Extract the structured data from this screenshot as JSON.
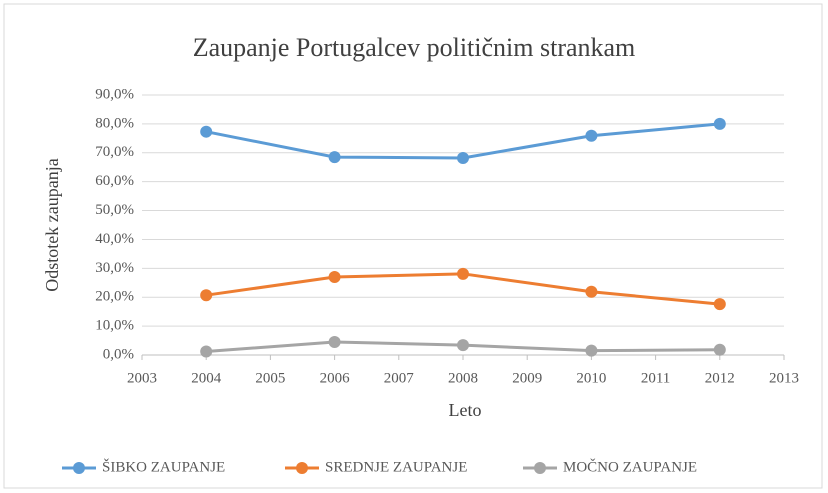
{
  "chart_data": {
    "type": "line",
    "title": "Zaupanje Portugalcev političnim strankam",
    "x_label": "Leto",
    "y_label": "Odstotek zaupanja",
    "x": [
      2004,
      2006,
      2008,
      2010,
      2012
    ],
    "series": [
      {
        "name": "ŠIBKO ZAUPANJE",
        "color": "#5b9bd5",
        "values": [
          77.3,
          68.5,
          68.2,
          75.9,
          80.0
        ]
      },
      {
        "name": "SREDNJE ZAUPANJE",
        "color": "#ed7d31",
        "values": [
          20.7,
          27.0,
          28.1,
          21.9,
          17.6
        ]
      },
      {
        "name": "MOČNO ZAUPANJE",
        "color": "#a5a5a5",
        "values": [
          1.2,
          4.5,
          3.4,
          1.5,
          1.8
        ]
      }
    ],
    "xlim": [
      2003,
      2013
    ],
    "xticks": [
      2003,
      2004,
      2005,
      2006,
      2007,
      2008,
      2009,
      2010,
      2011,
      2012,
      2013
    ],
    "ylim": [
      0,
      90
    ],
    "yticks": [
      {
        "value": 0,
        "label": "0,0%"
      },
      {
        "value": 10,
        "label": "10,0%"
      },
      {
        "value": 20,
        "label": "20,0%"
      },
      {
        "value": 30,
        "label": "30,0%"
      },
      {
        "value": 40,
        "label": "40,0%"
      },
      {
        "value": 50,
        "label": "50,0%"
      },
      {
        "value": 60,
        "label": "60,0%"
      },
      {
        "value": 70,
        "label": "70,0%"
      },
      {
        "value": 80,
        "label": "80,0%"
      },
      {
        "value": 90,
        "label": "90,0%"
      }
    ],
    "grid": true,
    "legend": "bottom"
  }
}
